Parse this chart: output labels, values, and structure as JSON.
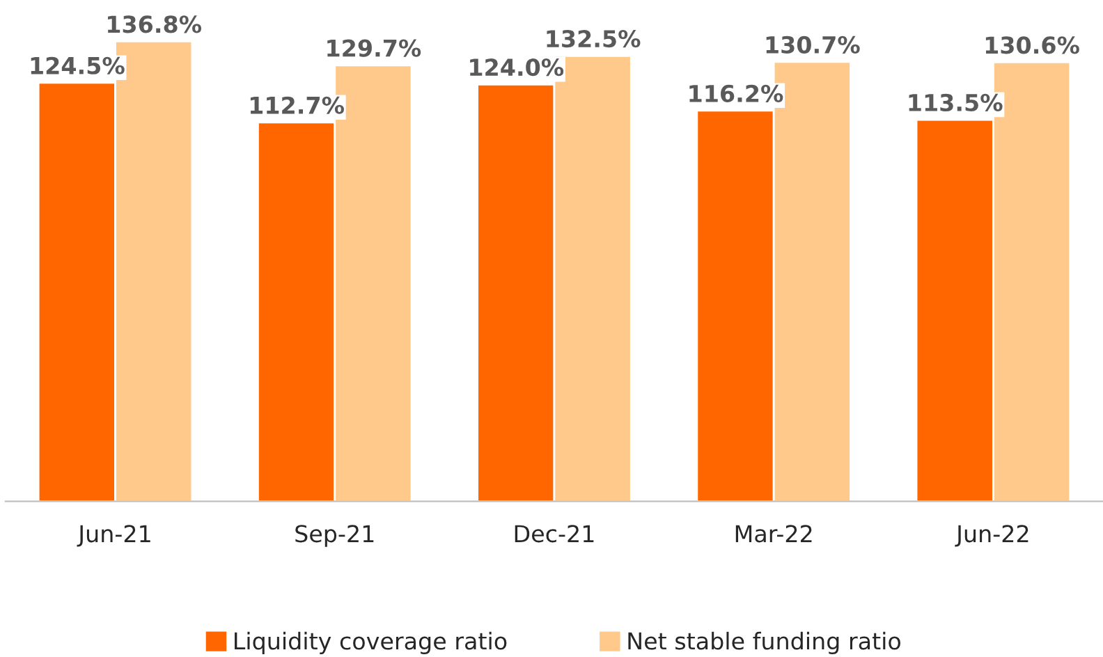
{
  "chart_data": {
    "type": "bar",
    "categories": [
      "Jun-21",
      "Sep-21",
      "Dec-21",
      "Mar-22",
      "Jun-22"
    ],
    "series": [
      {
        "name": "Liquidity coverage ratio",
        "color": "#ff6600",
        "values": [
          124.5,
          112.7,
          124.0,
          116.2,
          113.5
        ],
        "value_labels": [
          "124.5%",
          "112.7%",
          "124.0%",
          "116.2%",
          "113.5%"
        ]
      },
      {
        "name": "Net stable funding ratio",
        "color": "#ffc98b",
        "values": [
          136.8,
          129.7,
          132.5,
          130.7,
          130.6
        ],
        "value_labels": [
          "136.8%",
          "129.7%",
          "132.5%",
          "130.7%",
          "130.6%"
        ]
      }
    ],
    "tick_labels": "x",
    "grid": false,
    "legend": "bottom"
  }
}
